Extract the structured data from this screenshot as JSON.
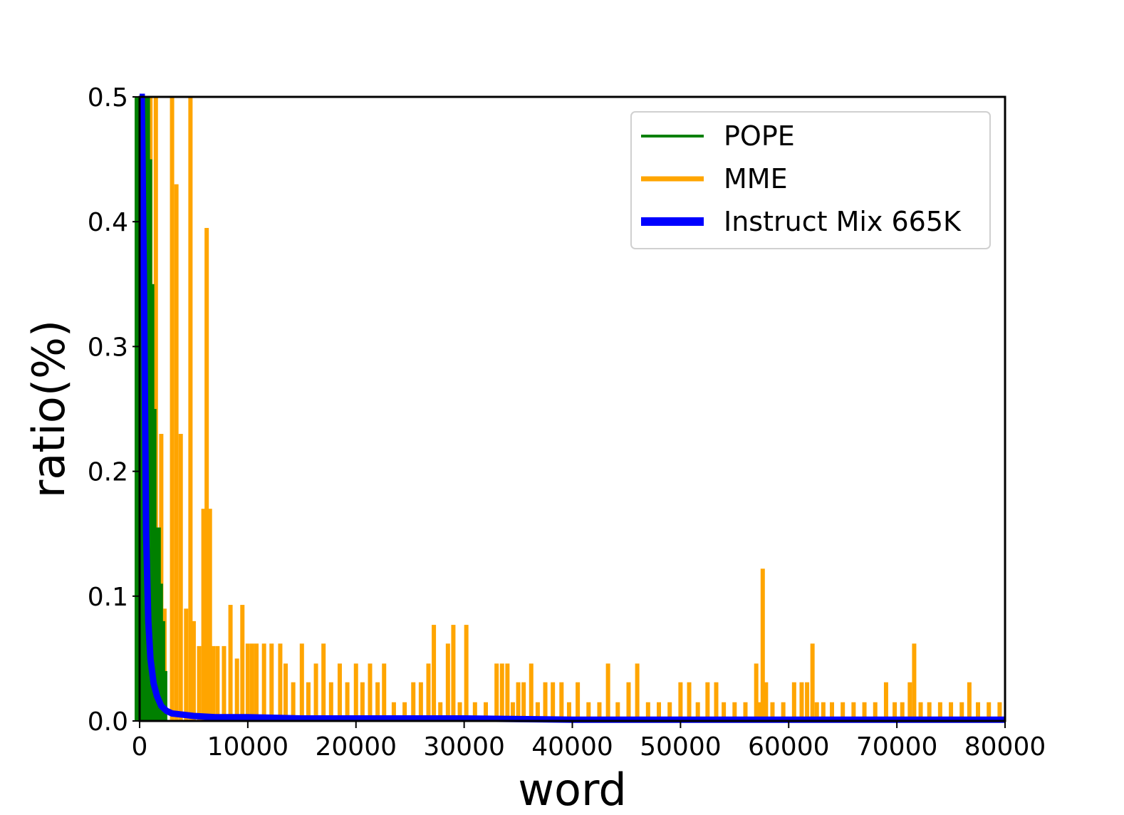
{
  "chart_data": {
    "type": "line",
    "title": "",
    "xlabel": "word",
    "ylabel": "ratio(%)",
    "xlim": [
      0,
      80000
    ],
    "ylim": [
      0,
      0.5
    ],
    "x_ticks": [
      0,
      10000,
      20000,
      30000,
      40000,
      50000,
      60000,
      70000,
      80000
    ],
    "y_ticks": [
      0.0,
      0.1,
      0.2,
      0.3,
      0.4,
      0.5
    ],
    "x_tick_labels": [
      "0",
      "10000",
      "20000",
      "30000",
      "40000",
      "50000",
      "60000",
      "70000",
      "80000"
    ],
    "y_tick_labels": [
      "0.0",
      "0.1",
      "0.2",
      "0.3",
      "0.4",
      "0.5"
    ],
    "grid": false,
    "legend_position": "top-right",
    "series": [
      {
        "name": "POPE",
        "color": "#008000",
        "style": "dense spikes",
        "x": [
          0,
          100,
          300,
          500,
          700,
          900,
          1100,
          1300,
          1500,
          1700,
          1900,
          2100,
          2200
        ],
        "values": [
          0.5,
          0.5,
          0.5,
          0.5,
          0.45,
          0.35,
          0.25,
          0.14,
          0.155,
          0.11,
          0.08,
          0.04,
          0.0
        ]
      },
      {
        "name": "MME",
        "color": "#FFA500",
        "style": "spikes",
        "x": [
          1000,
          1200,
          1500,
          2000,
          2300,
          3000,
          3400,
          3800,
          4300,
          4700,
          5000,
          5500,
          5900,
          6200,
          6500,
          6800,
          7200,
          7800,
          8400,
          9000,
          9500,
          10000,
          10400,
          10800,
          11500,
          12200,
          13000,
          13500,
          14200,
          15000,
          15600,
          16300,
          17000,
          17700,
          18500,
          19200,
          20000,
          20600,
          21300,
          22000,
          22600,
          23500,
          24500,
          25300,
          26000,
          26700,
          27200,
          27800,
          28500,
          29000,
          29600,
          30200,
          31000,
          32000,
          33000,
          33500,
          34000,
          34500,
          35000,
          35500,
          36200,
          36800,
          37500,
          38200,
          39000,
          39700,
          40500,
          41500,
          42500,
          43300,
          44200,
          45200,
          46000,
          47000,
          48000,
          49000,
          50000,
          50800,
          51600,
          52500,
          53300,
          54000,
          55000,
          56000,
          57000,
          57300,
          57600,
          57900,
          58500,
          59500,
          60500,
          61200,
          61700,
          62200,
          62600,
          63200,
          64000,
          65000,
          66000,
          67000,
          68000,
          69000,
          69800,
          70500,
          71200,
          71600,
          72200,
          73000,
          74000,
          75000,
          76000,
          76700,
          77500,
          78500,
          79500
        ],
        "values": [
          0.5,
          0.24,
          0.5,
          0.23,
          0.09,
          0.5,
          0.43,
          0.23,
          0.09,
          0.5,
          0.08,
          0.06,
          0.17,
          0.395,
          0.17,
          0.06,
          0.06,
          0.06,
          0.093,
          0.05,
          0.093,
          0.062,
          0.062,
          0.062,
          0.062,
          0.062,
          0.062,
          0.046,
          0.031,
          0.062,
          0.031,
          0.046,
          0.062,
          0.031,
          0.046,
          0.031,
          0.046,
          0.031,
          0.046,
          0.031,
          0.046,
          0.015,
          0.015,
          0.031,
          0.031,
          0.046,
          0.077,
          0.015,
          0.062,
          0.077,
          0.015,
          0.077,
          0.015,
          0.015,
          0.046,
          0.046,
          0.046,
          0.015,
          0.031,
          0.031,
          0.046,
          0.015,
          0.031,
          0.031,
          0.031,
          0.015,
          0.031,
          0.015,
          0.015,
          0.046,
          0.015,
          0.031,
          0.046,
          0.015,
          0.015,
          0.015,
          0.031,
          0.031,
          0.015,
          0.031,
          0.031,
          0.015,
          0.015,
          0.015,
          0.046,
          0.015,
          0.122,
          0.031,
          0.015,
          0.015,
          0.031,
          0.031,
          0.031,
          0.062,
          0.015,
          0.015,
          0.015,
          0.015,
          0.015,
          0.015,
          0.015,
          0.031,
          0.015,
          0.015,
          0.031,
          0.062,
          0.015,
          0.015,
          0.015,
          0.015,
          0.015,
          0.031,
          0.015,
          0.015,
          0.015
        ]
      },
      {
        "name": "Instruct Mix 665K",
        "color": "#0000FF",
        "style": "decay curve",
        "x": [
          0,
          200,
          400,
          600,
          800,
          1000,
          1300,
          1600,
          2000,
          2500,
          3000,
          4000,
          5000,
          7000,
          10000,
          15000,
          20000,
          30000,
          40000,
          50000,
          60000,
          70000,
          80000
        ],
        "values": [
          0.5,
          0.5,
          0.35,
          0.15,
          0.08,
          0.05,
          0.03,
          0.02,
          0.012,
          0.008,
          0.006,
          0.005,
          0.004,
          0.003,
          0.003,
          0.002,
          0.002,
          0.002,
          0.001,
          0.001,
          0.001,
          0.001,
          0.001
        ]
      }
    ]
  }
}
